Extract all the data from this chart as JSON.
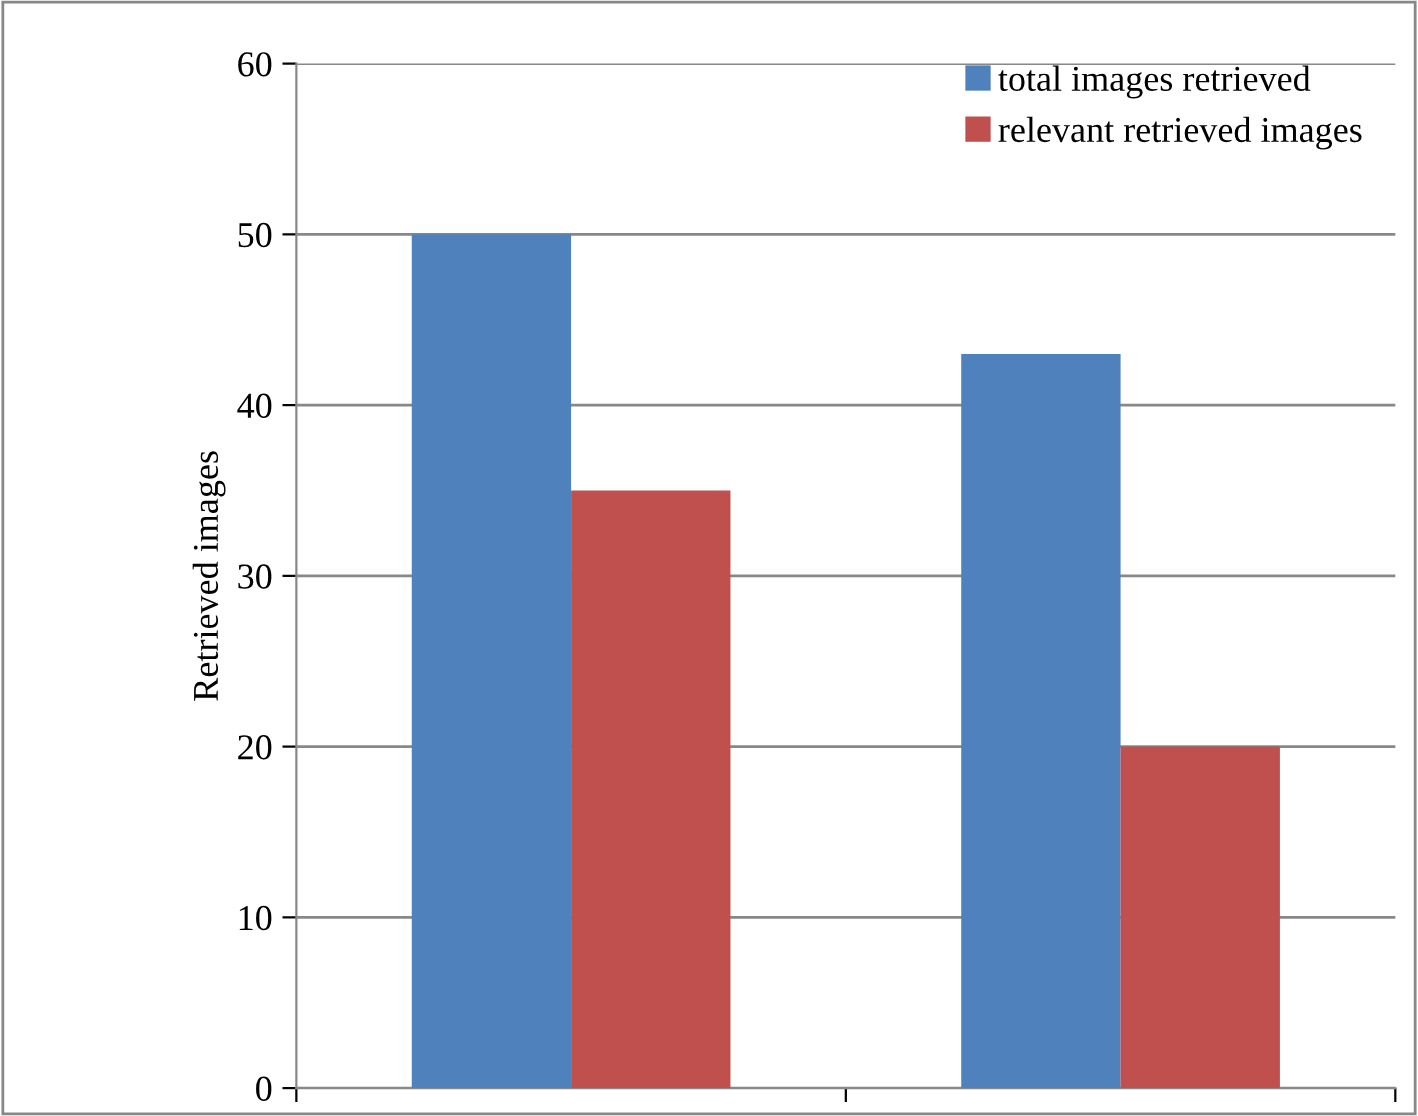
{
  "chart_data": {
    "type": "bar",
    "ylabel": "Retrieved images",
    "categories": [
      null,
      null
    ],
    "series": [
      {
        "name": "total images retrieved",
        "color": "#4f81bd",
        "values": [
          50,
          43
        ]
      },
      {
        "name": "relevant retrieved images",
        "color": "#c0504d",
        "values": [
          35,
          20
        ]
      }
    ],
    "ylim": [
      0,
      60
    ],
    "yticks": [
      0,
      10,
      20,
      30,
      40,
      50,
      60
    ],
    "grid": "y",
    "legend": "top right"
  }
}
